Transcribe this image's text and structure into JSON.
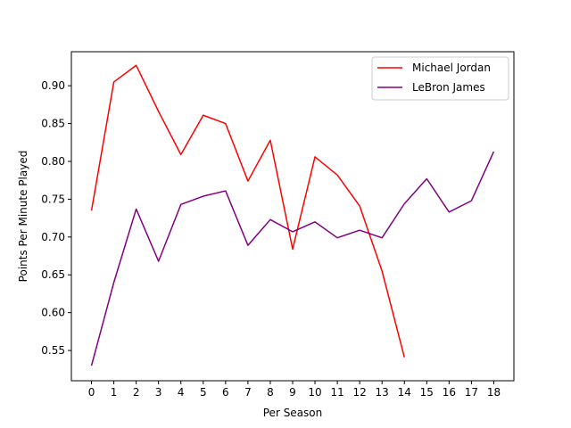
{
  "chart_data": {
    "type": "line",
    "title": "",
    "xlabel": "Per Season",
    "ylabel": "Points Per Minute Played",
    "xlim": [
      -0.9,
      18.9
    ],
    "ylim": [
      0.51,
      0.945
    ],
    "xticks": [
      0,
      1,
      2,
      3,
      4,
      5,
      6,
      7,
      8,
      9,
      10,
      11,
      12,
      13,
      14,
      15,
      16,
      17,
      18
    ],
    "yticks": [
      0.55,
      0.6,
      0.65,
      0.7,
      0.75,
      0.8,
      0.85,
      0.9
    ],
    "ytick_labels": [
      "0.55",
      "0.60",
      "0.65",
      "0.70",
      "0.75",
      "0.80",
      "0.85",
      "0.90"
    ],
    "grid": false,
    "legend_position": "top-right",
    "series": [
      {
        "name": "Michael Jordan",
        "color": "#ff0000",
        "x": [
          0,
          1,
          2,
          3,
          4,
          5,
          6,
          7,
          8,
          9,
          10,
          11,
          12,
          13,
          14
        ],
        "y": [
          0.735,
          0.905,
          0.927,
          0.866,
          0.809,
          0.861,
          0.85,
          0.774,
          0.828,
          0.684,
          0.806,
          0.782,
          0.741,
          0.655,
          0.541
        ]
      },
      {
        "name": "LeBron James",
        "color": "#800080",
        "x": [
          0,
          1,
          2,
          3,
          4,
          5,
          6,
          7,
          8,
          9,
          10,
          11,
          12,
          13,
          14,
          15,
          16,
          17,
          18
        ],
        "y": [
          0.53,
          0.64,
          0.737,
          0.668,
          0.743,
          0.754,
          0.761,
          0.689,
          0.723,
          0.707,
          0.72,
          0.699,
          0.709,
          0.699,
          0.744,
          0.777,
          0.733,
          0.748,
          0.813
        ]
      }
    ]
  }
}
